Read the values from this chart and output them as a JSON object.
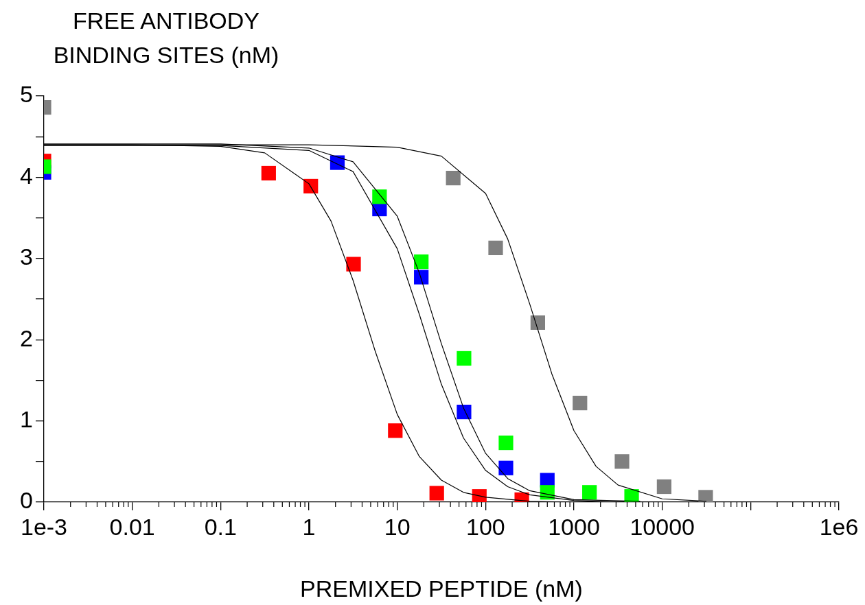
{
  "chart_data": {
    "type": "scatter",
    "xlabel": "PREMIXED PEPTIDE (nM)",
    "ylabel": "FREE ANTIBODY\nBINDING SITES (nM)",
    "log": "x",
    "marker": "square",
    "grid": false,
    "legend": false,
    "xlim": [
      0.001,
      1000000
    ],
    "ylim": [
      0,
      5
    ],
    "xticks": [
      {
        "value": 0.001,
        "label": "1e-3"
      },
      0.01,
      0.1,
      1,
      10,
      100,
      1000,
      10000,
      {
        "value": 100000,
        "label": null
      },
      {
        "value": 1000000,
        "label": "1e6"
      }
    ],
    "yticks": [
      0,
      {
        "value": 0.5,
        "label": null
      },
      1,
      {
        "value": 1.5,
        "label": null
      },
      2,
      {
        "value": 2.5,
        "label": null
      },
      3,
      {
        "value": 3.5,
        "label": null
      },
      4,
      {
        "value": 4.5,
        "label": null
      },
      5
    ],
    "series": [
      {
        "type": "line",
        "marker": "none",
        "color": "#000000",
        "x": [
          0.001,
          0.01,
          0.1,
          0.316,
          1,
          1.78,
          3.16,
          5.62,
          10,
          17.8,
          31.6,
          56.2,
          100,
          316,
          1000
        ],
        "values": [
          4.4,
          4.4,
          4.38,
          4.3,
          3.92,
          3.46,
          2.73,
          1.86,
          1.08,
          0.56,
          0.27,
          0.12,
          0.06,
          0.01,
          0
        ]
      },
      {
        "type": "line",
        "marker": "none",
        "color": "#000000",
        "x": [
          0.001,
          0.1,
          1,
          3.16,
          10,
          17.8,
          31.6,
          56.2,
          100,
          178,
          316,
          1000,
          3160
        ],
        "values": [
          4.39,
          4.39,
          4.33,
          4.07,
          3.12,
          2.31,
          1.45,
          0.79,
          0.39,
          0.19,
          0.09,
          0.02,
          0
        ]
      },
      {
        "type": "line",
        "marker": "none",
        "color": "#000000",
        "x": [
          0.001,
          0.1,
          1,
          3.16,
          10,
          17.8,
          31.6,
          56.2,
          100,
          178,
          316,
          1000,
          5620
        ],
        "values": [
          4.41,
          4.41,
          4.36,
          4.19,
          3.52,
          2.82,
          1.95,
          1.16,
          0.6,
          0.29,
          0.14,
          0.03,
          0.01
        ]
      },
      {
        "type": "line",
        "marker": "none",
        "color": "#000000",
        "x": [
          0.001,
          0.1,
          1,
          10,
          31.6,
          100,
          178,
          316,
          562,
          1000,
          1780,
          3160,
          10000,
          31600
        ],
        "values": [
          4.4,
          4.4,
          4.4,
          4.37,
          4.26,
          3.8,
          3.24,
          2.44,
          1.58,
          0.88,
          0.44,
          0.21,
          0.04,
          0.01
        ]
      },
      {
        "color": "#ff0000",
        "x": [
          0.001,
          0.35,
          1.05,
          3.2,
          9.5,
          28,
          85,
          257
        ],
        "values": [
          4.2,
          4.05,
          3.89,
          2.93,
          0.88,
          0.11,
          0.07,
          0.03
        ]
      },
      {
        "color": "#0000ff",
        "x": [
          0.001,
          2.1,
          6.3,
          18.7,
          57,
          170,
          500
        ],
        "values": [
          4.06,
          4.18,
          3.61,
          2.77,
          1.11,
          0.42,
          0.27
        ]
      },
      {
        "color": "#00ff00",
        "x": [
          0.001,
          6.3,
          18.7,
          57,
          170,
          500,
          1500,
          4500
        ],
        "values": [
          4.13,
          3.76,
          2.96,
          1.77,
          0.73,
          0.12,
          0.12,
          0.07
        ]
      },
      {
        "color": "#808080",
        "x": [
          0.001,
          43,
          130,
          390,
          1170,
          3500,
          10500,
          31000
        ],
        "values": [
          4.86,
          3.99,
          3.13,
          2.21,
          1.22,
          0.5,
          0.19,
          0.06
        ]
      }
    ]
  }
}
